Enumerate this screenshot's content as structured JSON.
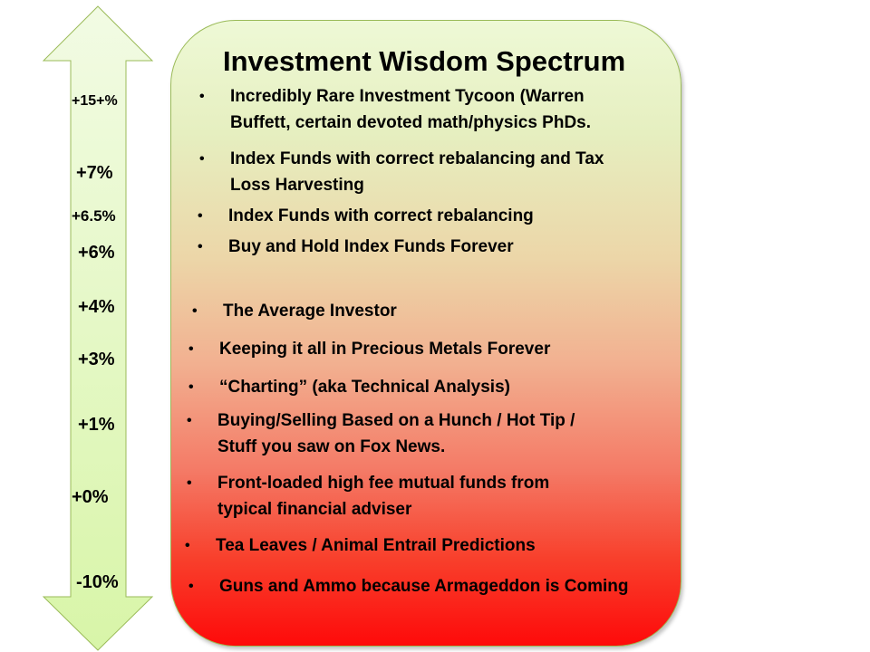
{
  "title": "Investment Wisdom Spectrum",
  "colors": {
    "arrow_fill_top": "#f2fbe4",
    "arrow_fill_bottom": "#d8f5a8",
    "arrow_border": "#9bbb59",
    "box_top": "#eef9d6",
    "box_bottom": "#fe0a0a"
  },
  "arrow_icon": "double-headed-vertical-arrow",
  "returns": [
    "+15+%",
    "+7%",
    "+6.5%",
    "+6%",
    "+4%",
    "+3%",
    "+1%",
    "+0%",
    "-10%"
  ],
  "items": [
    {
      "line1": "Incredibly Rare Investment Tycoon (Warren",
      "line2": "Buffett, certain devoted math/physics PhDs."
    },
    {
      "line1": "Index Funds with correct rebalancing and Tax",
      "line2": "Loss Harvesting"
    },
    {
      "line1": "Index Funds with correct rebalancing"
    },
    {
      "line1": "Buy and Hold Index Funds Forever"
    },
    {
      "line1": "The Average Investor"
    },
    {
      "line1": "Keeping it all in Precious Metals Forever"
    },
    {
      "line1": "“Charting” (aka Technical Analysis)"
    },
    {
      "line1": "Buying/Selling Based on a Hunch / Hot Tip /",
      "line2": "Stuff you saw on Fox News."
    },
    {
      "line1": "Front-loaded high fee mutual funds from",
      "line2": "typical financial adviser"
    },
    {
      "line1": "Tea Leaves / Animal Entrail Predictions"
    },
    {
      "line1": "Guns and Ammo because Armageddon is Coming"
    }
  ]
}
